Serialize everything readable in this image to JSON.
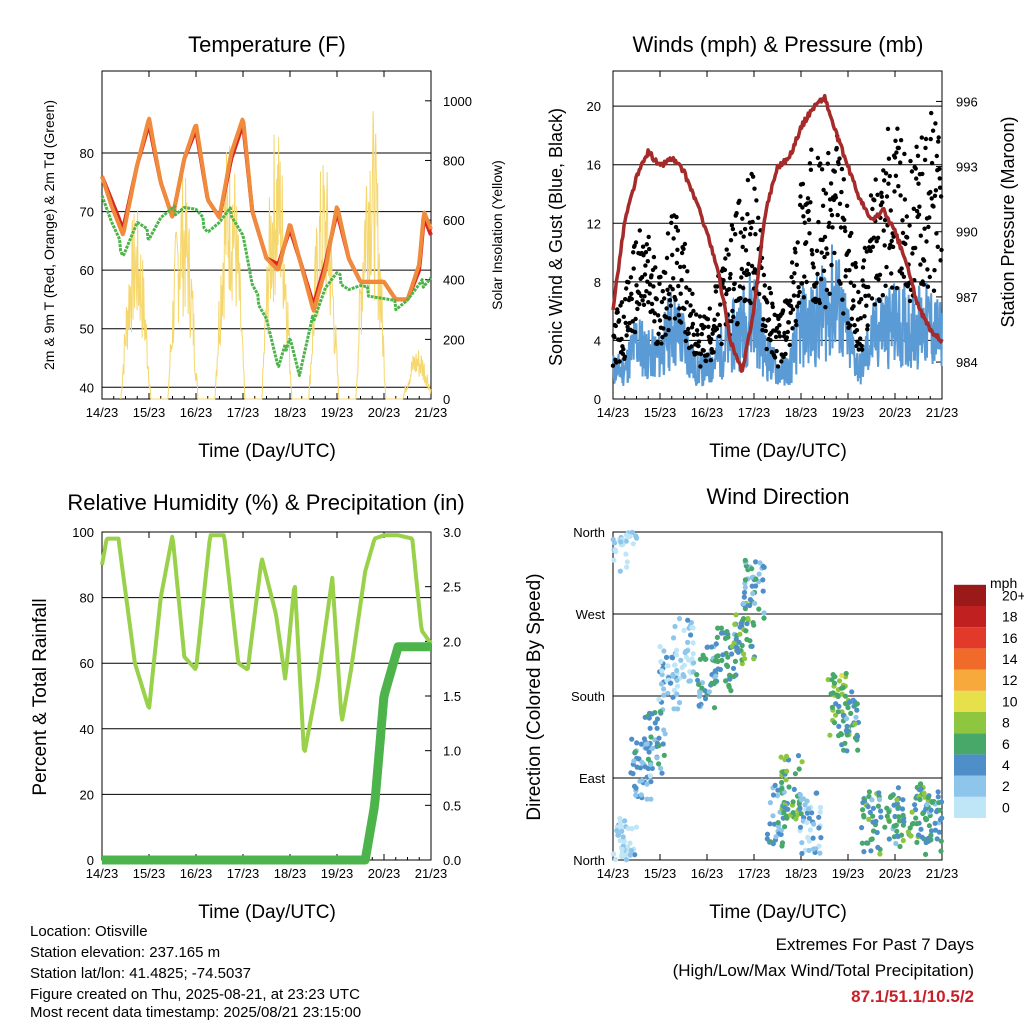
{
  "x_ticks": [
    "14/23",
    "15/23",
    "16/23",
    "17/23",
    "18/23",
    "19/23",
    "20/23",
    "21/23"
  ],
  "colors": {
    "temp2m": "#d7261e",
    "temp9m": "#f08a3c",
    "dewpoint": "#4db34b",
    "solar": "#f5d76e",
    "wind": "#5b9bd5",
    "gust": "#000000",
    "pressure": "#a52a2a",
    "rh": "#9ad14b",
    "precip": "#4db34b",
    "extremes": "#c8202a"
  },
  "panels": {
    "temperature": {
      "title": "Temperature (F)",
      "ylabel_left": "2m & 9m T (Red, Orange) & 2m Td (Green)",
      "ylabel_right": "Solar Insolation (Yellow)",
      "xlabel": "Time (Day/UTC)",
      "ylim_left": [
        38,
        94
      ],
      "ylim_right": [
        0,
        1100
      ],
      "yticks_left": [
        "40",
        "50",
        "60",
        "70",
        "80"
      ],
      "yticks_right": [
        "0",
        "200",
        "400",
        "600",
        "800",
        "1000"
      ]
    },
    "winds": {
      "title": "Winds (mph) & Pressure (mb)",
      "ylabel_left": "Sonic Wind & Gust (Blue, Black)",
      "ylabel_right": "Station Pressure (Maroon)",
      "xlabel": "Time (Day/UTC)",
      "ylim_left": [
        0,
        22.4
      ],
      "ylim_right": [
        982.3,
        997.4
      ],
      "yticks_left": [
        "0",
        "4",
        "8",
        "12",
        "16",
        "20"
      ],
      "yticks_right": [
        "984",
        "987",
        "990",
        "993",
        "996"
      ]
    },
    "humidity": {
      "title": "Relative Humidity (%) & Precipitation (in)",
      "ylabel_left": "Percent & Total Rainfall",
      "xlabel": "Time (Day/UTC)",
      "ylim_left": [
        0,
        100
      ],
      "ylim_right": [
        0,
        3.0
      ],
      "yticks_left": [
        "0",
        "20",
        "40",
        "60",
        "80",
        "100"
      ],
      "yticks_right": [
        "0.0",
        "0.5",
        "1.0",
        "1.5",
        "2.0",
        "2.5",
        "3.0"
      ]
    },
    "direction": {
      "title": "Wind Direction",
      "ylabel_left": "Direction (Colored By Speed)",
      "xlabel": "Time (Day/UTC)",
      "yticks_left": [
        "North",
        "East",
        "South",
        "West",
        "North"
      ],
      "legend_title": "mph",
      "legend_labels": [
        "0",
        "2",
        "4",
        "6",
        "8",
        "10",
        "12",
        "14",
        "16",
        "18",
        "20+"
      ],
      "legend_colors": [
        "#bfe6f7",
        "#8ec5ea",
        "#4f8fc9",
        "#47a86a",
        "#8ec63f",
        "#e6e14a",
        "#f7a93c",
        "#f06a2a",
        "#e23a2a",
        "#c0201f",
        "#9a1a1a"
      ]
    }
  },
  "footer": {
    "location": "Location: Otisville",
    "elevation": "Station elevation: 237.165 m",
    "latlon": "Station lat/lon: 41.4825; -74.5037",
    "created": "Figure created on Thu, 2025-08-21, at 23:23 UTC",
    "recent": "Most recent data timestamp: 2025/08/21 23:15:00"
  },
  "extremes": {
    "heading": "Extremes For Past 7 Days",
    "subheading": "(High/Low/Max Wind/Total Precipitation)",
    "values": "87.1/51.1/10.5/2"
  },
  "chart_data": [
    {
      "type": "line",
      "title": "Temperature (F)",
      "x": [
        0,
        0.2,
        0.45,
        0.75,
        1.0,
        1.25,
        1.5,
        1.75,
        2.0,
        2.25,
        2.5,
        2.75,
        3.0,
        3.2,
        3.5,
        3.75,
        4.0,
        4.2,
        4.5,
        4.75,
        5.0,
        5.25,
        5.5,
        5.75,
        6.0,
        6.25,
        6.5,
        6.75,
        6.85,
        7.0
      ],
      "series": [
        {
          "name": "2m T (Red)",
          "values": [
            76,
            71,
            66,
            78,
            86,
            75,
            69,
            79,
            85,
            72,
            69,
            80,
            86,
            70,
            62,
            60,
            68,
            62,
            53,
            60,
            71,
            62,
            58,
            58,
            58,
            55,
            55,
            61,
            70,
            67
          ]
        },
        {
          "name": "9m T (Orange)",
          "values": [
            76,
            72,
            67,
            78,
            85,
            75,
            69,
            79,
            84,
            72,
            69,
            79,
            85,
            70,
            62,
            61,
            67,
            62,
            54,
            61,
            70,
            62,
            58,
            58,
            58,
            55,
            55,
            60,
            69,
            66
          ]
        },
        {
          "name": "2m Td (Green)",
          "values": [
            73,
            68,
            63,
            68,
            66,
            69,
            70,
            71,
            70,
            67,
            68,
            70,
            66,
            57,
            52,
            43,
            49,
            42,
            52,
            57,
            59,
            57,
            57,
            56,
            55,
            54,
            55,
            57,
            58,
            59
          ]
        }
      ],
      "solar_insolation_daily_peak": [
        {
          "day": "14/23",
          "peak": 650
        },
        {
          "day": "15/23",
          "peak": 780
        },
        {
          "day": "16/23",
          "peak": 920
        },
        {
          "day": "17/23",
          "peak": 950
        },
        {
          "day": "18/23",
          "peak": 830
        },
        {
          "day": "19/23",
          "peak": 1020
        },
        {
          "day": "20/23",
          "peak": 180
        },
        {
          "day": "21/23",
          "peak": 680
        }
      ],
      "y_units": "F",
      "y2_units": "W/m2"
    },
    {
      "type": "line",
      "title": "Winds (mph) & Pressure (mb)",
      "x": [
        0,
        0.25,
        0.5,
        0.75,
        1.0,
        1.25,
        1.5,
        1.75,
        2.0,
        2.25,
        2.5,
        2.75,
        3.0,
        3.25,
        3.5,
        3.75,
        4.0,
        4.25,
        4.5,
        4.75,
        5.0,
        5.25,
        5.5,
        5.75,
        6.0,
        6.25,
        6.5,
        6.75,
        7.0
      ],
      "series": [
        {
          "name": "Sonic Wind (Blue, mean)",
          "values": [
            2,
            2,
            4,
            3,
            3,
            5,
            4,
            2,
            2,
            3,
            4,
            5,
            6,
            3,
            2,
            2,
            5,
            5,
            6,
            7,
            4,
            2,
            4,
            5,
            5,
            5,
            5,
            5,
            4
          ]
        },
        {
          "name": "Gust (Black, mean)",
          "values": [
            4,
            5,
            8,
            8,
            6,
            9,
            8,
            4,
            4,
            6,
            8,
            10,
            11,
            6,
            4,
            5,
            11,
            12,
            11,
            13,
            9,
            5,
            10,
            13,
            13,
            12,
            12,
            14,
            12
          ]
        },
        {
          "name": "Station Pressure (Maroon)",
          "values": [
            986.5,
            990.5,
            992.5,
            993.7,
            993.0,
            993.4,
            992.8,
            991.5,
            990.0,
            988.0,
            985.0,
            983.5,
            986.5,
            991.0,
            993.0,
            993.4,
            994.8,
            995.7,
            996.2,
            994.5,
            993.0,
            991.5,
            990.5,
            991.0,
            990.0,
            988.5,
            986.5,
            985.5,
            985.0
          ]
        }
      ],
      "y_units": "mph",
      "y2_units": "mb"
    },
    {
      "type": "line",
      "title": "Relative Humidity (%) & Precipitation (in)",
      "x": [
        0,
        0.1,
        0.35,
        0.7,
        1.0,
        1.25,
        1.5,
        1.75,
        2.0,
        2.3,
        2.6,
        2.9,
        3.1,
        3.4,
        3.7,
        3.9,
        4.1,
        4.3,
        4.6,
        4.9,
        5.1,
        5.3,
        5.6,
        5.8,
        6.0,
        6.3,
        6.6,
        6.8,
        7.0
      ],
      "series": [
        {
          "name": "Relative Humidity (%)",
          "values": [
            90,
            98,
            98,
            60,
            46,
            80,
            99,
            62,
            58,
            99,
            99,
            60,
            58,
            92,
            75,
            55,
            85,
            32,
            55,
            86,
            42,
            58,
            88,
            98,
            99,
            99,
            98,
            70,
            66
          ]
        },
        {
          "name": "Total Rainfall (in)",
          "values": [
            0,
            0,
            0,
            0,
            0,
            0,
            0,
            0,
            0,
            0,
            0,
            0,
            0,
            0,
            0,
            0,
            0,
            0,
            0,
            0,
            0,
            0,
            0,
            0.5,
            1.5,
            1.95,
            1.95,
            1.95,
            1.95
          ]
        }
      ],
      "y_units": "%",
      "y2_units": "in"
    },
    {
      "type": "scatter",
      "title": "Wind Direction",
      "y_categories": [
        "North",
        "East",
        "South",
        "West",
        "North"
      ],
      "points": [
        {
          "x": 0.1,
          "dir": 350,
          "speed": 1
        },
        {
          "x": 0.3,
          "dir": 20,
          "speed": 2
        },
        {
          "x": 0.6,
          "dir": 100,
          "speed": 4
        },
        {
          "x": 0.9,
          "dir": 130,
          "speed": 5
        },
        {
          "x": 1.2,
          "dir": 200,
          "speed": 3
        },
        {
          "x": 1.5,
          "dir": 230,
          "speed": 2
        },
        {
          "x": 2.0,
          "dir": 200,
          "speed": 5
        },
        {
          "x": 2.4,
          "dir": 220,
          "speed": 6
        },
        {
          "x": 2.8,
          "dir": 250,
          "speed": 7
        },
        {
          "x": 3.0,
          "dir": 300,
          "speed": 5
        },
        {
          "x": 3.5,
          "dir": 50,
          "speed": 5
        },
        {
          "x": 3.8,
          "dir": 80,
          "speed": 7
        },
        {
          "x": 4.2,
          "dir": 40,
          "speed": 3
        },
        {
          "x": 4.8,
          "dir": 170,
          "speed": 8
        },
        {
          "x": 5.0,
          "dir": 150,
          "speed": 6
        },
        {
          "x": 5.5,
          "dir": 40,
          "speed": 6
        },
        {
          "x": 6.0,
          "dir": 45,
          "speed": 6
        },
        {
          "x": 6.5,
          "dir": 50,
          "speed": 7
        },
        {
          "x": 6.8,
          "dir": 40,
          "speed": 5
        }
      ],
      "speed_units": "mph"
    }
  ]
}
